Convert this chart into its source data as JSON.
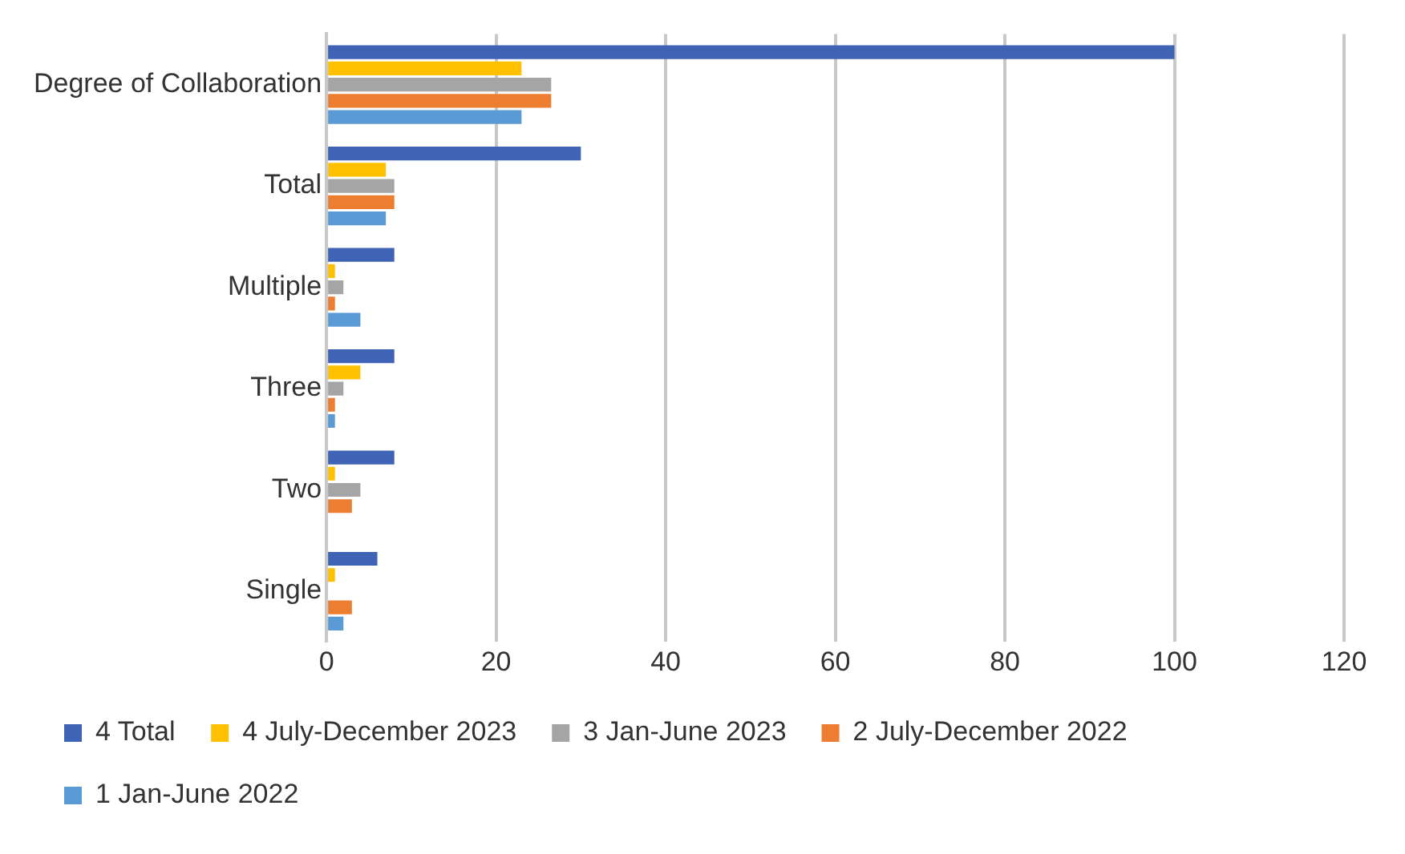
{
  "chart_data": {
    "type": "bar",
    "orientation": "horizontal",
    "categories": [
      "Degree of Collaboration",
      "Total",
      "Multiple",
      "Three",
      "Two",
      "Single"
    ],
    "series": [
      {
        "name": "4 Total",
        "color": "#3f63b5",
        "values": [
          100,
          30,
          8,
          8,
          8,
          6
        ]
      },
      {
        "name": "4 July-December 2023",
        "color": "#ffc000",
        "values": [
          23,
          7,
          1,
          4,
          1,
          1
        ]
      },
      {
        "name": "3 Jan-June 2023",
        "color": "#a5a5a5",
        "values": [
          26.5,
          8,
          2,
          2,
          4,
          0
        ]
      },
      {
        "name": "2 July-December 2022",
        "color": "#ed7d31",
        "values": [
          26.5,
          8,
          1,
          1,
          3,
          3
        ]
      },
      {
        "name": "1 Jan-June 2022",
        "color": "#5b9bd5",
        "values": [
          23,
          7,
          4,
          1,
          0,
          2
        ]
      }
    ],
    "xlim": [
      0,
      120
    ],
    "xticks": [
      0,
      20,
      40,
      60,
      80,
      100,
      120
    ],
    "grid": "x",
    "legend": "bottom"
  }
}
